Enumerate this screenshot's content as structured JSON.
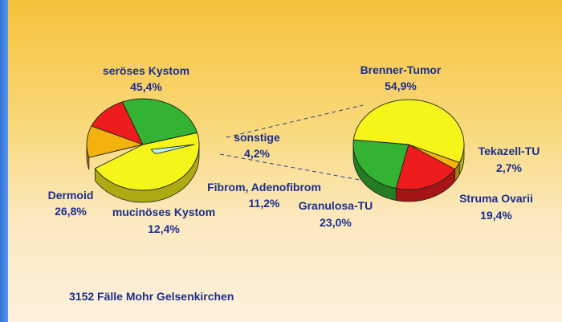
{
  "chart_data": [
    {
      "type": "pie",
      "style": "3d-tilted",
      "slices": [
        {
          "label": "seröses Kystom",
          "value": 45.4,
          "value_text": "45,4%",
          "color": "#f5f51a"
        },
        {
          "label": "sonstige",
          "value": 4.2,
          "value_text": "4,2%",
          "color": "#b8f8fb",
          "exploded": true
        },
        {
          "label": "Fibrom, Adenofibrom",
          "value": 11.2,
          "value_text": "11,2%",
          "color": "#f3b20c"
        },
        {
          "label": "mucinöses Kystom",
          "value": 12.4,
          "value_text": "12,4%",
          "color": "#ee1c1c"
        },
        {
          "label": "Dermoid",
          "value": 26.8,
          "value_text": "26,8%",
          "color": "#34b232"
        }
      ]
    },
    {
      "type": "pie",
      "style": "3d-tilted",
      "breakdown_of": "sonstige",
      "slices": [
        {
          "label": "Brenner-Tumor",
          "value": 54.9,
          "value_text": "54,9%",
          "color": "#f5f51a"
        },
        {
          "label": "Tekazell-TU",
          "value": 2.7,
          "value_text": "2,7%",
          "color": "#f3b20c"
        },
        {
          "label": "Struma Ovarii",
          "value": 19.4,
          "value_text": "19,4%",
          "color": "#ee1c1c"
        },
        {
          "label": "Granulosa-TU",
          "value": 23.0,
          "value_text": "23,0%",
          "color": "#34b232"
        }
      ]
    }
  ],
  "footer": "3152 Fälle Mohr Gelsenkirchen"
}
